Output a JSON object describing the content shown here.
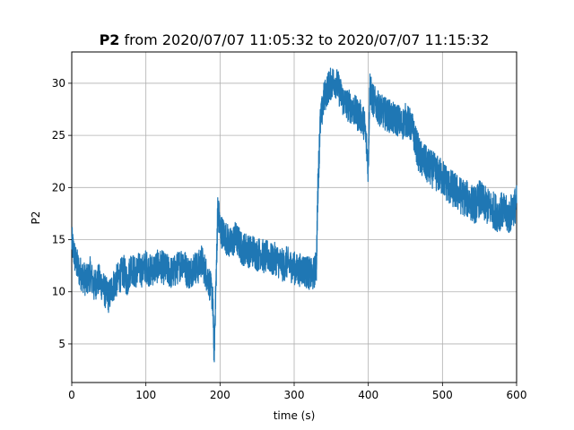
{
  "chart_data": {
    "type": "line",
    "title_bold": "P2",
    "title_rest": " from 2020/07/07 11:05:32 to 2020/07/07 11:15:32",
    "xlabel": "time (s)",
    "ylabel": "P2",
    "xlim": [
      0,
      600
    ],
    "ylim": [
      1.3,
      33.0
    ],
    "xticks": [
      0,
      100,
      200,
      300,
      400,
      500,
      600
    ],
    "yticks": [
      5,
      10,
      15,
      20,
      25,
      30
    ],
    "grid": true,
    "colors": {
      "series": "#1f77b4",
      "grid": "#b0b0b0"
    },
    "series": [
      {
        "x": [
          0,
          5,
          10,
          15,
          20,
          25,
          30,
          35,
          40,
          45,
          50,
          55,
          60,
          65,
          70,
          75,
          80,
          85,
          90,
          95,
          100,
          105,
          110,
          115,
          120,
          125,
          130,
          135,
          140,
          145,
          150,
          155,
          160,
          165,
          170,
          175,
          180,
          185,
          190,
          192,
          195,
          197,
          200,
          205,
          210,
          215,
          220,
          225,
          230,
          235,
          240,
          245,
          250,
          255,
          260,
          265,
          270,
          275,
          280,
          285,
          290,
          295,
          300,
          305,
          310,
          315,
          320,
          325,
          330,
          332,
          335,
          340,
          345,
          350,
          355,
          360,
          365,
          370,
          375,
          380,
          385,
          390,
          395,
          400,
          402,
          405,
          410,
          415,
          420,
          425,
          430,
          435,
          440,
          445,
          450,
          455,
          460,
          465,
          470,
          475,
          480,
          485,
          490,
          495,
          500,
          505,
          510,
          515,
          520,
          525,
          530,
          535,
          540,
          545,
          550,
          555,
          560,
          565,
          570,
          575,
          580,
          585,
          590,
          595,
          600
        ],
        "y": [
          14.8,
          13.0,
          12.0,
          11.5,
          11.0,
          11.8,
          10.5,
          11.2,
          10.8,
          10.0,
          9.5,
          10.5,
          11.0,
          11.5,
          12.0,
          11.0,
          12.5,
          11.8,
          12.2,
          12.0,
          12.5,
          12.0,
          12.2,
          12.4,
          12.5,
          12.2,
          12.0,
          11.8,
          12.0,
          12.5,
          13.0,
          12.0,
          11.8,
          12.5,
          12.2,
          13.0,
          12.0,
          11.0,
          9.5,
          4.0,
          12.0,
          18.0,
          16.0,
          15.5,
          15.0,
          14.5,
          15.2,
          14.8,
          14.0,
          14.2,
          13.8,
          14.0,
          13.5,
          13.8,
          13.2,
          13.5,
          13.0,
          13.2,
          12.8,
          12.5,
          12.8,
          12.5,
          12.3,
          12.0,
          12.2,
          12.0,
          11.8,
          11.5,
          12.5,
          20.0,
          26.0,
          28.5,
          29.5,
          30.0,
          30.3,
          29.5,
          28.5,
          28.0,
          27.8,
          27.5,
          27.0,
          26.8,
          26.0,
          22.0,
          29.8,
          28.5,
          28.0,
          27.5,
          27.2,
          27.0,
          26.8,
          26.5,
          26.5,
          26.0,
          26.5,
          26.2,
          25.5,
          24.0,
          22.8,
          22.5,
          22.0,
          21.8,
          21.5,
          21.2,
          21.0,
          20.5,
          20.0,
          19.8,
          19.5,
          19.2,
          19.0,
          18.8,
          18.5,
          18.3,
          19.0,
          18.5,
          18.2,
          18.0,
          17.8,
          17.5,
          17.8,
          17.5,
          17.2,
          18.0,
          18.5
        ]
      }
    ]
  }
}
